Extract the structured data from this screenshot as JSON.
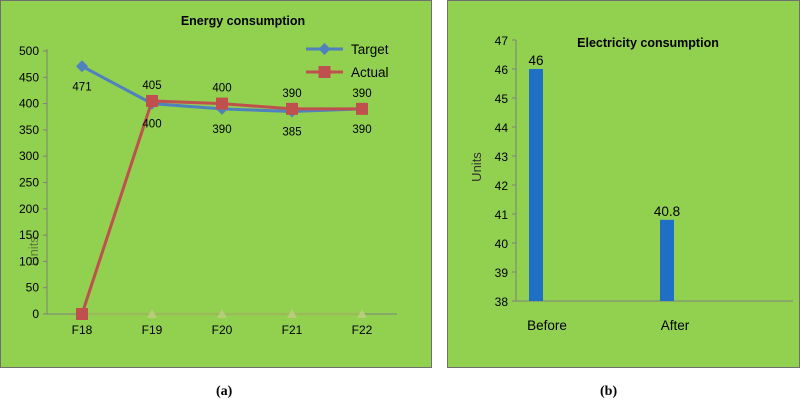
{
  "chart_data": [
    {
      "type": "line",
      "title": "Energy consumption",
      "ylabel": "Units",
      "xlabel": "",
      "categories": [
        "F18",
        "F19",
        "F20",
        "F21",
        "F22"
      ],
      "ylim": [
        0,
        500
      ],
      "yticks": [
        "0",
        "50",
        "100",
        "150",
        "200",
        "250",
        "300",
        "350",
        "400",
        "450",
        "500"
      ],
      "series": [
        {
          "name": "Target",
          "values": [
            471,
            400,
            390,
            385,
            390
          ],
          "labels": [
            "471",
            "400",
            "390",
            "385",
            "390"
          ],
          "color": "#4f81bd"
        },
        {
          "name": "Actual",
          "values": [
            0,
            405,
            400,
            390,
            390
          ],
          "labels": [
            "",
            "405",
            "400",
            "390",
            "390"
          ],
          "color": "#c0504d"
        },
        {
          "name": "",
          "values": [
            0,
            0,
            0,
            0,
            0
          ],
          "color": "#9bbb59"
        }
      ],
      "legend": "top-right"
    },
    {
      "type": "bar",
      "title": "Electricity consumption",
      "ylabel": "Units",
      "xlabel": "",
      "categories": [
        "Before",
        "After"
      ],
      "values": [
        46,
        40.8
      ],
      "labels": [
        "46",
        "40.8"
      ],
      "ylim": [
        38,
        47
      ],
      "yticks": [
        "38",
        "39",
        "40",
        "41",
        "42",
        "43",
        "44",
        "45",
        "46",
        "47"
      ],
      "color": "#1f6fc5"
    }
  ],
  "captions": {
    "a": "(a)",
    "b": "(b)"
  }
}
